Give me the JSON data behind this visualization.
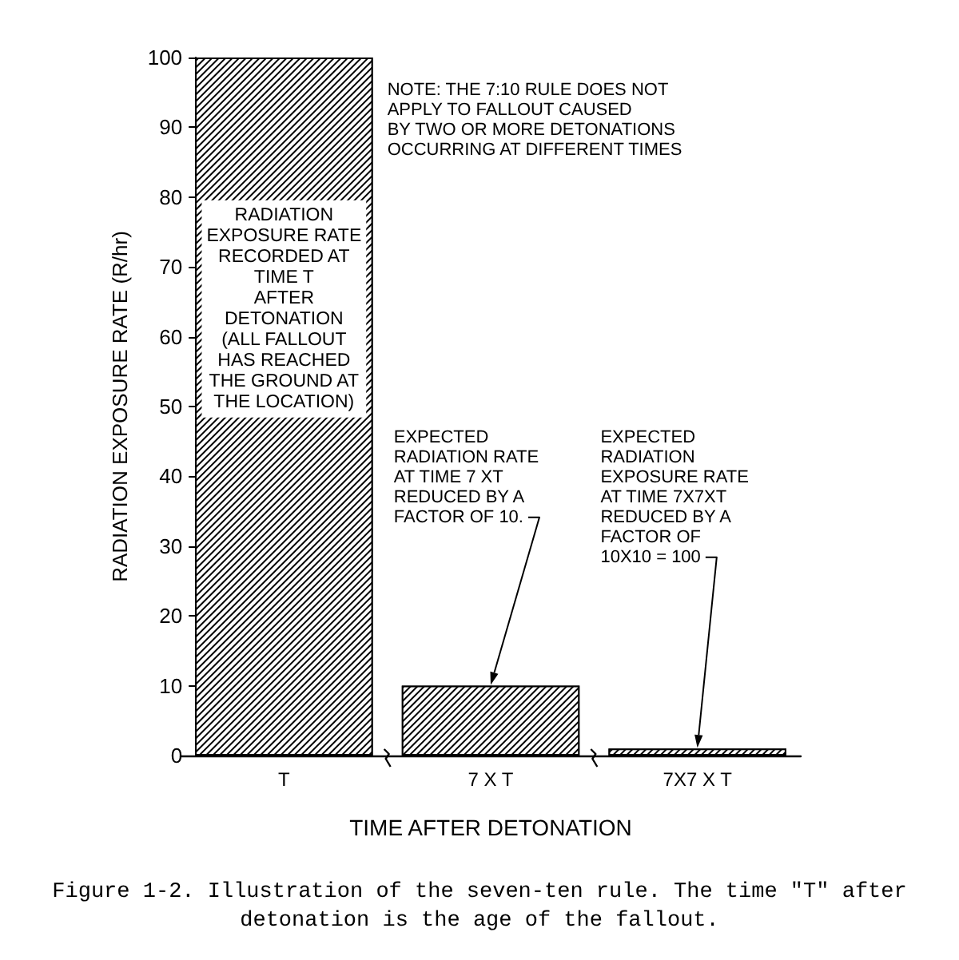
{
  "chart_data": {
    "type": "bar",
    "categories": [
      "T",
      "7 X T",
      "7X7 X T"
    ],
    "values": [
      100,
      10,
      1
    ],
    "color": "#000000",
    "xlabel": "TIME AFTER DETONATION",
    "ylabel": "RADIATION EXPOSURE RATE (R/hr)",
    "ylim": [
      0,
      100
    ],
    "yticks": [
      0,
      10,
      20,
      30,
      40,
      50,
      60,
      70,
      80,
      90,
      100
    ],
    "annotations": [
      "NOTE: THE 7:10 RULE DOES NOT\nAPPLY TO FALLOUT CAUSED\nBY TWO OR MORE DETONATIONS\nOCCURRING AT DIFFERENT TIMES",
      "RADIATION\nEXPOSURE RATE\nRECORDED AT\nTIME T\nAFTER\nDETONATION\n(ALL FALLOUT\nHAS REACHED\nTHE GROUND AT\nTHE LOCATION)",
      {
        "text": "EXPECTED\nRADIATION RATE\nAT TIME 7 XT\nREDUCED BY A\nFACTOR OF 10.",
        "x": "7 X T",
        "y": 10
      },
      {
        "text": "EXPECTED\nRADIATION\nEXPOSURE RATE\nAT TIME 7X7XT\nREDUCED BY A\nFACTOR OF\n10X10 = 100",
        "x": "7X7 X T",
        "y": 1
      },
      "Figure 1-2. Illustration of the seven-ten rule. The time \"T\" after\ndetonation is the age of the fallout."
    ]
  }
}
